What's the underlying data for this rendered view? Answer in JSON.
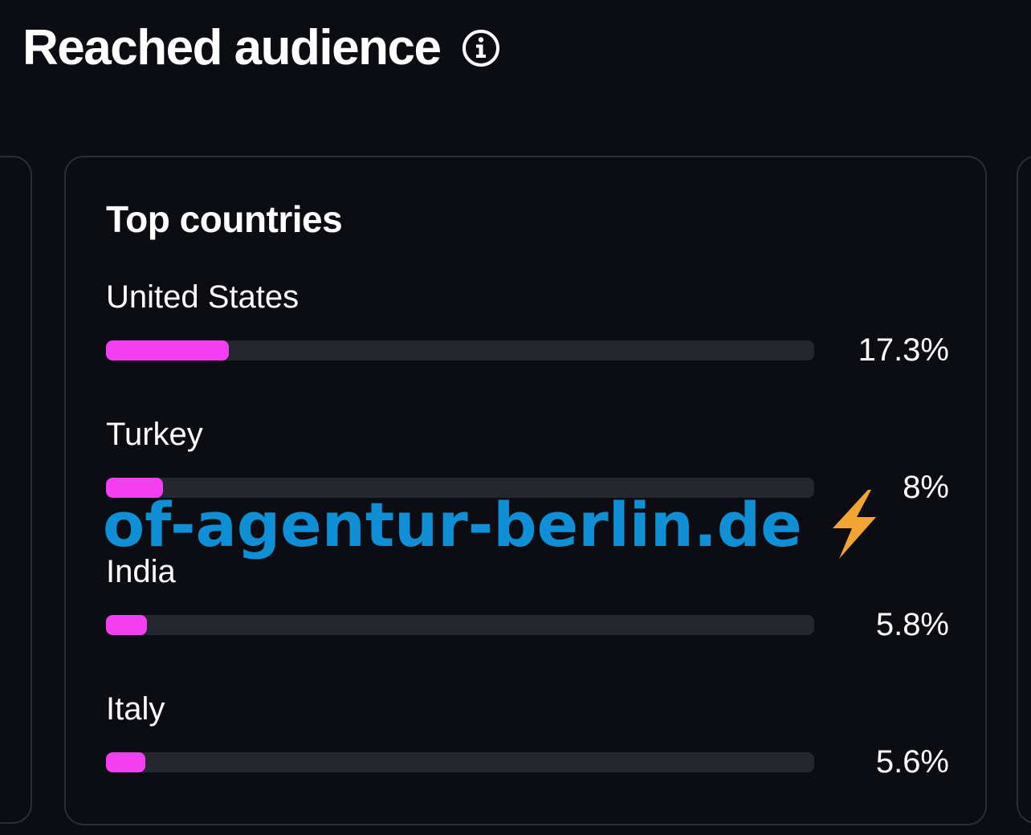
{
  "header": {
    "title": "Reached audience",
    "info_icon": "info-circle-icon"
  },
  "card": {
    "title": "Top countries",
    "countries": [
      {
        "name": "United States",
        "value_label": "17.3%",
        "percent": 17.3
      },
      {
        "name": "Turkey",
        "value_label": "8%",
        "percent": 8
      },
      {
        "name": "India",
        "value_label": "5.8%",
        "percent": 5.8
      },
      {
        "name": "Italy",
        "value_label": "5.6%",
        "percent": 5.6
      }
    ]
  },
  "watermark": {
    "text": "of-agentur-berlin.de",
    "icon": "lightning-bolt-icon"
  },
  "colors": {
    "background": "#0b0d13",
    "bar_fill": "#f33ff1",
    "bar_track": "#25272e",
    "card_border": "#2a2d35",
    "watermark": "#0f8fd6",
    "bolt": "#f2a533"
  }
}
